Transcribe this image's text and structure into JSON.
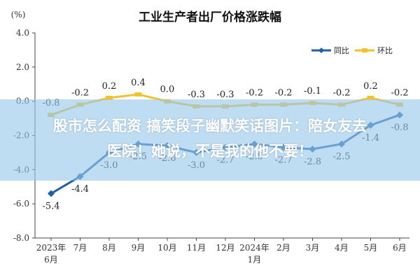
{
  "overlay": {
    "line1": "股市怎么配资 搞笑段子幽默笑话图片：陪女友去",
    "line2": "医院！她说，不是我的他不要！"
  },
  "chart_data": {
    "type": "line",
    "title": "工业生产者出厂价格涨跌幅",
    "unit_label": "(%)",
    "categories": [
      "2023年\n6月",
      "7月",
      "8月",
      "9月",
      "10月",
      "11月",
      "12月",
      "2024年\n1月",
      "2月",
      "3月",
      "4月",
      "5月",
      "6月"
    ],
    "ylim": [
      -8.0,
      4.0
    ],
    "yticks": [
      "4.0",
      "2.0",
      "0.0",
      "-2.0",
      "-4.0",
      "-6.0",
      "-8.0"
    ],
    "legend_position": "top-right",
    "series": [
      {
        "name": "同比",
        "color": "#1f5fa8",
        "values": [
          -5.4,
          -4.4,
          -3.0,
          -2.5,
          -2.6,
          -3.0,
          -2.7,
          -2.5,
          -2.7,
          -2.8,
          -2.5,
          -1.4,
          -0.8
        ],
        "labels": [
          "-5.4",
          "-4.4",
          "-3.0",
          "-2.5",
          "-2.6",
          "-3.0",
          "-2.7",
          "-2.5",
          "-2.7",
          "-2.8",
          "-2.5",
          "-1.4",
          "-0.8"
        ]
      },
      {
        "name": "环比",
        "color": "#f2c12e",
        "values": [
          -0.8,
          -0.2,
          0.2,
          0.4,
          0.0,
          -0.3,
          -0.3,
          -0.2,
          -0.2,
          -0.1,
          -0.2,
          0.2,
          -0.2
        ],
        "labels": [
          "-0.8",
          "-0.2",
          "0.2",
          "0.4",
          "0.0",
          "-0.3",
          "-0.3",
          "-0.2",
          "-0.2",
          "-0.1",
          "-0.2",
          "0.2",
          "-0.2"
        ]
      }
    ]
  }
}
